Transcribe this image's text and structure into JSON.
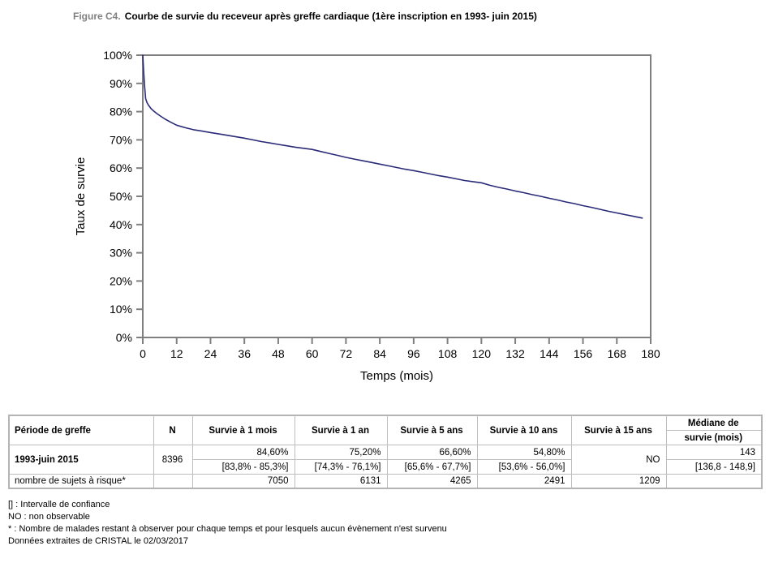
{
  "title": {
    "prefix": "Figure C4.",
    "text": "Courbe de survie du receveur après greffe cardiaque (1ère inscription en 1993- juin 2015)"
  },
  "chart_data": {
    "type": "line",
    "title": "",
    "xlabel": "Temps (mois)",
    "ylabel": "Taux de survie",
    "xlim": [
      0,
      180
    ],
    "ylim": [
      0,
      100
    ],
    "grid": false,
    "legend": "none",
    "axis_color": "#7f7f7f",
    "line_color": "#2a2a78",
    "x_ticks": [
      0,
      12,
      24,
      36,
      48,
      60,
      72,
      84,
      96,
      108,
      120,
      132,
      144,
      156,
      168,
      180
    ],
    "y_ticks": [
      0,
      10,
      20,
      30,
      40,
      50,
      60,
      70,
      80,
      90,
      100
    ],
    "y_tick_labels": [
      "0%",
      "10%",
      "20%",
      "30%",
      "40%",
      "50%",
      "60%",
      "70%",
      "80%",
      "90%",
      "100%"
    ],
    "series": [
      {
        "name": "Survie du receveur 1993-juin 2015",
        "x": [
          0,
          0.3,
          0.6,
          1,
          1.5,
          2,
          3,
          4,
          5,
          6,
          8,
          10,
          12,
          15,
          18,
          21,
          24,
          27,
          30,
          33,
          36,
          39,
          42,
          45,
          48,
          51,
          54,
          57,
          60,
          63,
          66,
          69,
          72,
          75,
          78,
          81,
          84,
          87,
          90,
          93,
          96,
          99,
          102,
          105,
          108,
          111,
          114,
          117,
          120,
          123,
          126,
          129,
          132,
          135,
          138,
          141,
          144,
          147,
          150,
          153,
          156,
          159,
          162,
          165,
          168,
          171,
          174,
          177
        ],
        "y": [
          100,
          94.5,
          89.5,
          84.6,
          83.2,
          82.3,
          81,
          80.1,
          79.3,
          78.6,
          77.3,
          76.2,
          75.2,
          74.3,
          73.6,
          73.1,
          72.6,
          72.1,
          71.6,
          71.1,
          70.6,
          70,
          69.4,
          68.9,
          68.4,
          67.9,
          67.4,
          67,
          66.6,
          65.9,
          65.2,
          64.5,
          63.8,
          63.2,
          62.6,
          62,
          61.4,
          60.8,
          60.2,
          59.6,
          59.1,
          58.5,
          57.9,
          57.3,
          56.8,
          56.2,
          55.6,
          55.2,
          54.8,
          53.9,
          53.2,
          52.6,
          51.9,
          51.3,
          50.6,
          50,
          49.3,
          48.7,
          48,
          47.4,
          46.7,
          46.1,
          45.4,
          44.7,
          44.1,
          43.5,
          42.9,
          42.3
        ]
      }
    ]
  },
  "table": {
    "col_headers": {
      "periode": "Période de greffe",
      "n": "N",
      "s1m": "Survie à 1 mois",
      "s1a": "Survie à 1 an",
      "s5a": "Survie à 5 ans",
      "s10a": "Survie à 10 ans",
      "s15a": "Survie à 15 ans",
      "mediane_line1": "Médiane de",
      "mediane_line2": "survie (mois)"
    },
    "row_greffe": {
      "periode": "1993-juin 2015",
      "n": "8396",
      "s1m": "84,60%",
      "s1m_ci": "[83,8% - 85,3%]",
      "s1a": "75,20%",
      "s1a_ci": "[74,3% - 76,1%]",
      "s5a": "66,60%",
      "s5a_ci": "[65,6% - 67,7%]",
      "s10a": "54,80%",
      "s10a_ci": "[53,6% - 56,0%]",
      "s15a": "NO",
      "mediane": "143",
      "mediane_ci": "[136,8 - 148,9]"
    },
    "row_risque": {
      "label": "nombre de sujets à risque*",
      "s1m": "7050",
      "s1a": "6131",
      "s5a": "4265",
      "s10a": "2491",
      "s15a": "1209"
    }
  },
  "footnotes": [
    "[] : Intervalle de confiance",
    "NO : non observable",
    "* : Nombre de malades restant à observer pour chaque temps et pour lesquels aucun évènement n'est survenu",
    "Données extraites de CRISTAL le 02/03/2017"
  ]
}
